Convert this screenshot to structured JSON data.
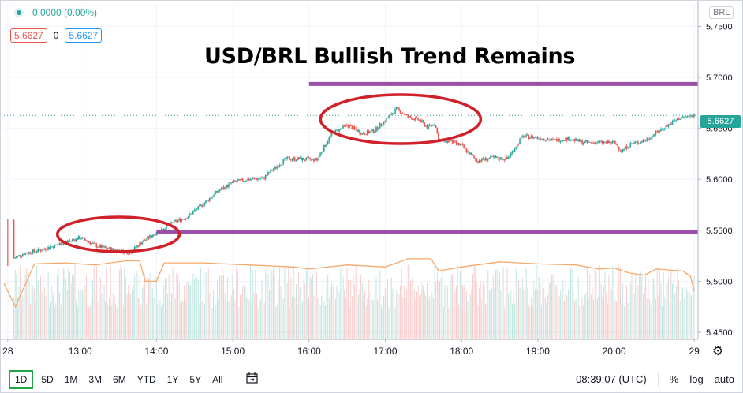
{
  "header": {
    "change_text": "0.0000 (0.00%)",
    "bid": "5.6627",
    "spread": "0",
    "ask": "5.6627",
    "currency_badge": "BRL"
  },
  "title": "USD/BRL Bullish Trend Remains",
  "last_price_label": "5.6627",
  "toolbar": {
    "timeframes": [
      "1D",
      "5D",
      "1M",
      "3M",
      "6M",
      "YTD",
      "1Y",
      "5Y",
      "All"
    ],
    "active_timeframe": "1D",
    "clock": "08:39:07 (UTC)",
    "percent_label": "%",
    "log_label": "log",
    "auto_label": "auto"
  },
  "icons": {
    "status": "green-dot-icon",
    "compare": "calendar-range-icon",
    "settings": "gear-icon"
  },
  "colors": {
    "up": "#26a69a",
    "down": "#ef5350",
    "annotation_line": "#9c4fa6",
    "annotation_ellipse": "#d0202a",
    "moving_average": "#f5a96b",
    "active_timeframe_border": "#22a34a"
  },
  "chart_data": {
    "type": "candlestick",
    "title": "USD/BRL Bullish Trend Remains",
    "x_ticks": [
      "28",
      "13:00",
      "14:00",
      "15:00",
      "16:00",
      "17:00",
      "18:00",
      "19:00",
      "20:00",
      "29"
    ],
    "y_ticks": [
      "5.7500",
      "5.7000",
      "5.6500",
      "5.6000",
      "5.5500",
      "5.5000",
      "5.4500"
    ],
    "ylim": [
      5.443,
      5.772
    ],
    "x_range_hours": [
      12.0,
      21.1
    ],
    "last_price": 5.6627,
    "price_path": [
      [
        12.0,
        5.56
      ],
      [
        12.12,
        5.522
      ],
      [
        12.25,
        5.527
      ],
      [
        12.5,
        5.531
      ],
      [
        12.8,
        5.538
      ],
      [
        13.0,
        5.543
      ],
      [
        13.2,
        5.535
      ],
      [
        13.35,
        5.532
      ],
      [
        13.5,
        5.53
      ],
      [
        13.65,
        5.528
      ],
      [
        13.8,
        5.538
      ],
      [
        14.0,
        5.548
      ],
      [
        14.2,
        5.557
      ],
      [
        14.4,
        5.563
      ],
      [
        14.6,
        5.575
      ],
      [
        14.8,
        5.588
      ],
      [
        15.0,
        5.597
      ],
      [
        15.2,
        5.6
      ],
      [
        15.4,
        5.601
      ],
      [
        15.5,
        5.608
      ],
      [
        15.7,
        5.62
      ],
      [
        15.85,
        5.62
      ],
      [
        16.1,
        5.619
      ],
      [
        16.3,
        5.645
      ],
      [
        16.5,
        5.653
      ],
      [
        16.7,
        5.645
      ],
      [
        16.85,
        5.647
      ],
      [
        17.0,
        5.658
      ],
      [
        17.15,
        5.669
      ],
      [
        17.3,
        5.661
      ],
      [
        17.45,
        5.658
      ],
      [
        17.55,
        5.651
      ],
      [
        17.65,
        5.655
      ],
      [
        17.7,
        5.638
      ],
      [
        17.85,
        5.637
      ],
      [
        18.0,
        5.633
      ],
      [
        18.2,
        5.618
      ],
      [
        18.4,
        5.621
      ],
      [
        18.6,
        5.62
      ],
      [
        18.8,
        5.642
      ],
      [
        19.0,
        5.641
      ],
      [
        19.2,
        5.638
      ],
      [
        19.4,
        5.64
      ],
      [
        19.6,
        5.636
      ],
      [
        19.8,
        5.636
      ],
      [
        20.0,
        5.636
      ],
      [
        20.1,
        5.628
      ],
      [
        20.2,
        5.634
      ],
      [
        20.4,
        5.638
      ],
      [
        20.6,
        5.648
      ],
      [
        20.85,
        5.66
      ],
      [
        21.05,
        5.6627
      ]
    ],
    "moving_average": [
      [
        12.0,
        5.498
      ],
      [
        12.15,
        5.475
      ],
      [
        12.4,
        5.517
      ],
      [
        12.8,
        5.518
      ],
      [
        13.2,
        5.516
      ],
      [
        13.6,
        5.52
      ],
      [
        13.78,
        5.52
      ],
      [
        13.85,
        5.5
      ],
      [
        14.0,
        5.5
      ],
      [
        14.1,
        5.518
      ],
      [
        14.6,
        5.518
      ],
      [
        15.2,
        5.516
      ],
      [
        15.8,
        5.514
      ],
      [
        16.0,
        5.512
      ],
      [
        16.5,
        5.516
      ],
      [
        17.0,
        5.514
      ],
      [
        17.3,
        5.522
      ],
      [
        17.6,
        5.522
      ],
      [
        17.7,
        5.51
      ],
      [
        18.0,
        5.514
      ],
      [
        18.5,
        5.519
      ],
      [
        19.0,
        5.517
      ],
      [
        19.5,
        5.516
      ],
      [
        19.8,
        5.512
      ],
      [
        20.0,
        5.513
      ],
      [
        20.2,
        5.508
      ],
      [
        20.4,
        5.506
      ],
      [
        20.55,
        5.512
      ],
      [
        20.9,
        5.51
      ],
      [
        21.0,
        5.505
      ],
      [
        21.05,
        5.49
      ]
    ],
    "annotations": {
      "resistance_line": {
        "y": 5.6935,
        "x_start": 16.0,
        "x_end": 21.1
      },
      "support_line": {
        "y": 5.548,
        "x_start": 14.0,
        "x_end": 21.1
      },
      "highlight_ellipses": [
        {
          "cx": 13.5,
          "cy": 5.546,
          "rx_hours": 0.8,
          "ry": 0.017
        },
        {
          "cx": 17.2,
          "cy": 5.659,
          "rx_hours": 1.05,
          "ry": 0.024
        }
      ]
    },
    "grid": true,
    "legend": "none"
  }
}
